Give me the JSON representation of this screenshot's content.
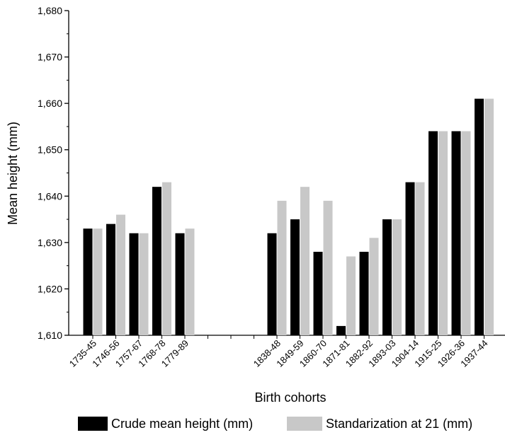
{
  "chart_data": {
    "type": "bar",
    "x_label": "Birth cohorts",
    "y_label": "Mean height (mm)",
    "categories": [
      "1735-45",
      "1746-56",
      "1757-67",
      "1768-78",
      "1779-89",
      null,
      null,
      null,
      "1838-48",
      "1849-59",
      "1860-70",
      "1871-81",
      "1882-92",
      "1893-03",
      "1904-14",
      "1915-25",
      "1926-36",
      "1937-44"
    ],
    "series": [
      {
        "name": "Crude mean height (mm)",
        "color": "#000000",
        "values": [
          1633,
          1634,
          1632,
          1642,
          1632,
          null,
          null,
          null,
          1632,
          1635,
          1628,
          1612,
          1628,
          1635,
          1643,
          1654,
          1654,
          1661
        ]
      },
      {
        "name": "Standarization at 21 (mm)",
        "color": "#c8c8c8",
        "values": [
          1633,
          1636,
          1632,
          1643,
          1633,
          null,
          null,
          null,
          1639,
          1642,
          1639,
          1627,
          1631,
          1635,
          1643,
          1654,
          1654,
          1661
        ]
      }
    ],
    "ylim": [
      1610,
      1680
    ],
    "yticks": [
      {
        "value": 1610,
        "label": "1,610"
      },
      {
        "value": 1620,
        "label": "1,620"
      },
      {
        "value": 1630,
        "label": "1,630"
      },
      {
        "value": 1640,
        "label": "1,640"
      },
      {
        "value": 1650,
        "label": "1,650"
      },
      {
        "value": 1660,
        "label": "1,660"
      },
      {
        "value": 1670,
        "label": "1,670"
      },
      {
        "value": 1680,
        "label": "1,680"
      }
    ],
    "grid": false,
    "legend": "bottom"
  }
}
